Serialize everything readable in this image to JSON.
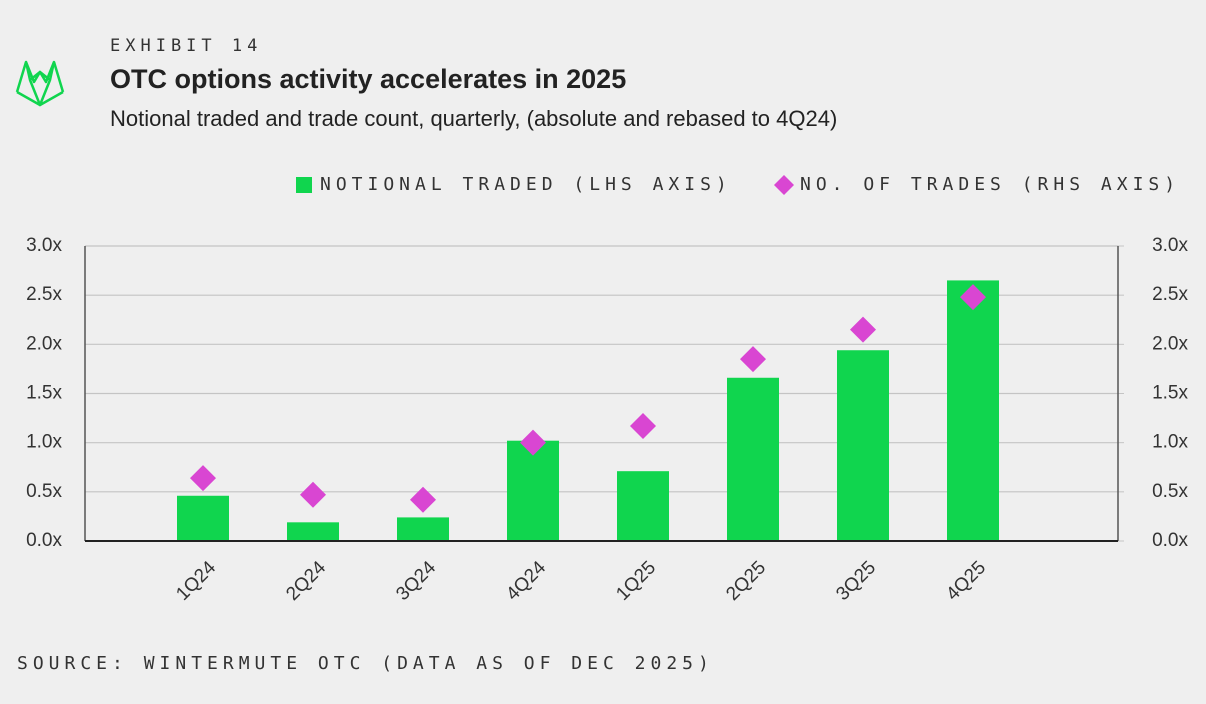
{
  "chart_data": {
    "type": "bar_scatter",
    "exhibit": "EXHIBIT 14",
    "title": "OTC options activity accelerates in 2025",
    "subtitle": "Notional traded and trade count, quarterly, (absolute and rebased to 4Q24)",
    "source": "SOURCE: WINTERMUTE OTC (DATA AS OF DEC 2025)",
    "categories": [
      "1Q24",
      "2Q24",
      "3Q24",
      "4Q24",
      "1Q25",
      "2Q25",
      "3Q25",
      "4Q25"
    ],
    "series": [
      {
        "name": "NOTIONAL TRADED (LHS AXIS)",
        "type": "bar",
        "color": "#10d54e",
        "values": [
          0.46,
          0.19,
          0.24,
          1.02,
          0.71,
          1.66,
          1.94,
          2.65
        ]
      },
      {
        "name": "NO. OF TRADES (RHS AXIS)",
        "type": "diamond",
        "axis": "y2",
        "color": "#d946d2",
        "values": [
          0.64,
          0.47,
          0.42,
          1.0,
          1.17,
          1.85,
          2.15,
          2.48
        ]
      }
    ],
    "ylim": [
      0,
      3
    ],
    "yticks": [
      {
        "value": 0,
        "label": "0.0x"
      },
      {
        "value": 0.5,
        "label": "0.5x"
      },
      {
        "value": 1,
        "label": "1.0x"
      },
      {
        "value": 1.5,
        "label": "1.5x"
      },
      {
        "value": 2,
        "label": "2.0x"
      },
      {
        "value": 2.5,
        "label": "2.5x"
      },
      {
        "value": 3,
        "label": "3.0x"
      }
    ],
    "y2lim": [
      0,
      3
    ],
    "y2ticks": [
      {
        "value": 0,
        "label": "0.0x"
      },
      {
        "value": 0.5,
        "label": "0.5x"
      },
      {
        "value": 1,
        "label": "1.0x"
      },
      {
        "value": 1.5,
        "label": "1.5x"
      },
      {
        "value": 2,
        "label": "2.0x"
      },
      {
        "value": 2.5,
        "label": "2.5x"
      },
      {
        "value": 3,
        "label": "3.0x"
      }
    ],
    "grid": true,
    "legend": "top-right"
  }
}
